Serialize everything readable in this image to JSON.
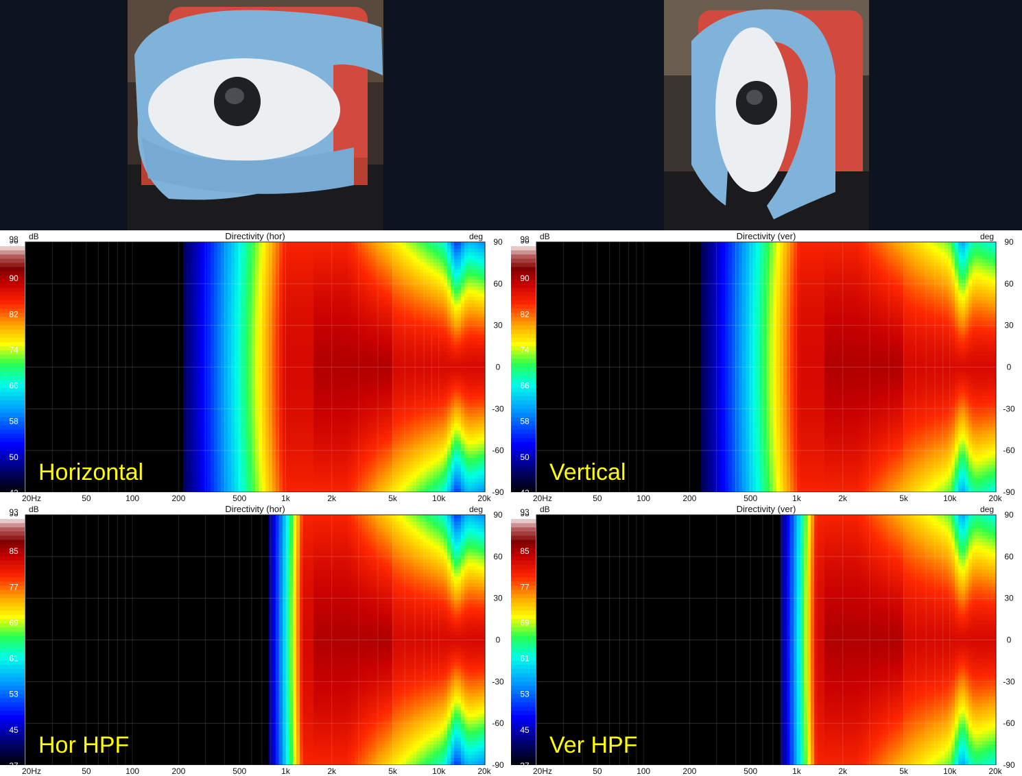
{
  "colors": {
    "page_bg": "#0e1320",
    "label_yellow": "#ffff00",
    "towel_blue": "#7fb3d9",
    "speaker_white": "#eceff2",
    "box_red": "#d24a3e"
  },
  "photos": [
    {
      "name": "horizontal-photo",
      "icon": "speaker-towel-horizontal"
    },
    {
      "name": "vertical-photo",
      "icon": "speaker-towel-vertical"
    }
  ],
  "chart_data": [
    {
      "type": "heatmap",
      "title": "Directivity (hor)",
      "overlay_label": "Horizontal",
      "colorbar_unit": "dB",
      "colorbar_ticks": [
        98,
        90,
        82,
        74,
        66,
        58,
        50,
        42
      ],
      "right_unit": "deg",
      "y_ticks": [
        90,
        60,
        30,
        0,
        -30,
        -60,
        -90
      ],
      "x_ticks": [
        "20Hz",
        "50",
        "100",
        "200",
        "500",
        "1k",
        "2k",
        "5k",
        "10k",
        "20k"
      ],
      "x_tick_values": [
        20,
        50,
        100,
        200,
        500,
        1000,
        2000,
        5000,
        10000,
        20000
      ],
      "xlim": [
        20,
        20000
      ],
      "ylim": [
        -90,
        90
      ],
      "x_scale": "log",
      "grid": true,
      "field": {
        "low_cut_hz": 210,
        "full_level_hz": 1000,
        "off_axis_narrowing": "strong",
        "hf_lobe_hz": 13000
      }
    },
    {
      "type": "heatmap",
      "title": "Directivity (ver)",
      "overlay_label": "Vertical",
      "colorbar_unit": "dB",
      "colorbar_ticks": [
        98,
        90,
        82,
        74,
        66,
        58,
        50,
        42
      ],
      "right_unit": "deg",
      "y_ticks": [
        90,
        60,
        30,
        0,
        -30,
        -60,
        -90
      ],
      "x_ticks": [
        "20Hz",
        "50",
        "100",
        "200",
        "500",
        "1k",
        "2k",
        "5k",
        "10k",
        "20k"
      ],
      "x_tick_values": [
        20,
        50,
        100,
        200,
        500,
        1000,
        2000,
        5000,
        10000,
        20000
      ],
      "xlim": [
        20,
        20000
      ],
      "ylim": [
        -90,
        90
      ],
      "x_scale": "log",
      "grid": true,
      "field": {
        "low_cut_hz": 240,
        "full_level_hz": 1050,
        "off_axis_narrowing": "moderate",
        "hf_lobe_hz": 12000
      }
    },
    {
      "type": "heatmap",
      "title": "Directivity (hor)",
      "overlay_label": "Hor HPF",
      "colorbar_unit": "dB",
      "colorbar_ticks": [
        93,
        85,
        77,
        69,
        61,
        53,
        45,
        37
      ],
      "right_unit": "deg",
      "y_ticks": [
        90,
        60,
        30,
        0,
        -30,
        -60,
        -90
      ],
      "x_ticks": [
        "20Hz",
        "50",
        "100",
        "200",
        "500",
        "1k",
        "2k",
        "5k",
        "10k",
        "20k"
      ],
      "x_tick_values": [
        20,
        50,
        100,
        200,
        500,
        1000,
        2000,
        5000,
        10000,
        20000
      ],
      "xlim": [
        20,
        20000
      ],
      "ylim": [
        -90,
        90
      ],
      "x_scale": "log",
      "grid": true,
      "field": {
        "low_cut_hz": 760,
        "full_level_hz": 1300,
        "off_axis_narrowing": "strong",
        "hf_lobe_hz": 13000
      }
    },
    {
      "type": "heatmap",
      "title": "Directivity (ver)",
      "overlay_label": "Ver HPF",
      "colorbar_unit": "dB",
      "colorbar_ticks": [
        93,
        85,
        77,
        69,
        61,
        53,
        45,
        37
      ],
      "right_unit": "deg",
      "y_ticks": [
        90,
        60,
        30,
        0,
        -30,
        -60,
        -90
      ],
      "x_ticks": [
        "20Hz",
        "50",
        "100",
        "200",
        "500",
        "1k",
        "2k",
        "5k",
        "10k",
        "20k"
      ],
      "x_tick_values": [
        20,
        50,
        100,
        200,
        500,
        1000,
        2000,
        5000,
        10000,
        20000
      ],
      "xlim": [
        20,
        20000
      ],
      "ylim": [
        -90,
        90
      ],
      "x_scale": "log",
      "grid": true,
      "field": {
        "low_cut_hz": 780,
        "full_level_hz": 1350,
        "off_axis_narrowing": "moderate",
        "hf_lobe_hz": 12000
      }
    }
  ]
}
